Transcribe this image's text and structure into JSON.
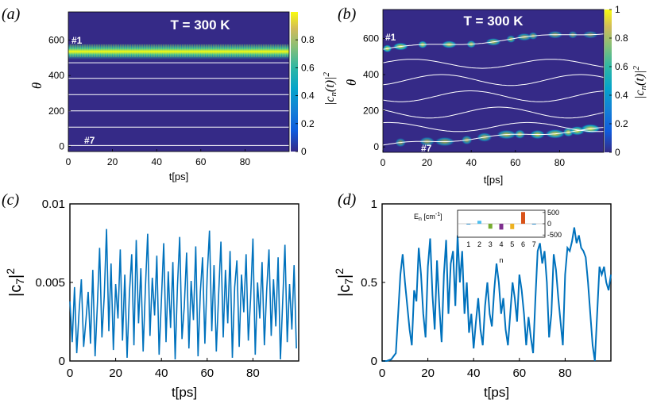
{
  "panels": {
    "a": {
      "letter": "(a)",
      "title": "T = 300 K",
      "ylabel": "θ",
      "xlabel": "t[ps]",
      "cbar_label": "|c_n(t)|^2",
      "marker_top": "#1",
      "marker_bottom": "#7",
      "xticks": [
        "0",
        "20",
        "40",
        "60",
        "80"
      ],
      "yticks": [
        "0",
        "200",
        "400",
        "600"
      ],
      "cbar_ticks": [
        "0",
        "0.2",
        "0.4",
        "0.6",
        "0.8"
      ]
    },
    "b": {
      "letter": "(b)",
      "title": "T = 300 K",
      "ylabel": "θ",
      "xlabel": "t[ps]",
      "cbar_label": "|c_n(t)|^2",
      "marker_top": "#1",
      "marker_bottom": "#7",
      "xticks": [
        "0",
        "20",
        "40",
        "60",
        "80"
      ],
      "yticks": [
        "0",
        "200",
        "400",
        "600"
      ],
      "cbar_ticks": [
        "0",
        "0.2",
        "0.4",
        "0.6",
        "0.8",
        "1"
      ]
    },
    "c": {
      "letter": "(c)",
      "ylabel": "|c_7|^2",
      "xlabel": "t[ps]",
      "xticks": [
        "0",
        "20",
        "40",
        "60",
        "80"
      ],
      "yticks": [
        "0",
        "0.005",
        "0.01"
      ]
    },
    "d": {
      "letter": "(d)",
      "ylabel": "|c_7|^2",
      "xlabel": "t[ps]",
      "xticks": [
        "0",
        "20",
        "40",
        "60",
        "80"
      ],
      "yticks": [
        "0",
        "0.5",
        "1"
      ],
      "inset": {
        "ylabel": "E_n [cm^-1]",
        "xlabel": "n",
        "xticks": [
          "1",
          "2",
          "3",
          "4",
          "5",
          "6",
          "7"
        ],
        "yticks": [
          "500",
          "0",
          "-500"
        ]
      }
    }
  },
  "colors": {
    "heat_bg": "#352a87",
    "line": "#0072bd",
    "white": "#ffffff"
  },
  "chart_data": [
    {
      "id": "a",
      "type": "heatmap",
      "title": "T = 300 K",
      "xlabel": "t[ps]",
      "ylabel": "θ",
      "xlim": [
        0,
        100
      ],
      "ylim": [
        -30,
        760
      ],
      "clim": [
        0,
        1
      ],
      "colorbar_label": "|c_n(t)|^2",
      "site_lines_theta": [
        4,
        108,
        200,
        292,
        384,
        472,
        540
      ],
      "bright_site": "#1",
      "bright_theta": 540,
      "bright_value": 0.9
    },
    {
      "id": "b",
      "type": "heatmap",
      "title": "T = 300 K",
      "xlabel": "t[ps]",
      "ylabel": "θ",
      "xlim": [
        0,
        100
      ],
      "ylim": [
        -30,
        760
      ],
      "clim": [
        0,
        1
      ],
      "colorbar_label": "|c_n(t)|^2",
      "note": "Wavy site trajectories; population transfers from site #1 (θ≈540-640) to site #7 (θ≈0-110) over time"
    },
    {
      "id": "c",
      "type": "line",
      "xlabel": "t[ps]",
      "ylabel": "|c_7|^2",
      "xlim": [
        0,
        100
      ],
      "ylim": [
        0,
        0.01
      ],
      "x": [
        0,
        1,
        2,
        3,
        4,
        5,
        6,
        7,
        8,
        9,
        10,
        11,
        12,
        13,
        14,
        15,
        16,
        17,
        18,
        19,
        20,
        21,
        22,
        23,
        24,
        25,
        26,
        27,
        28,
        29,
        30,
        31,
        32,
        33,
        34,
        35,
        36,
        37,
        38,
        39,
        40,
        41,
        42,
        43,
        44,
        45,
        46,
        47,
        48,
        49,
        50,
        51,
        52,
        53,
        54,
        55,
        56,
        57,
        58,
        59,
        60,
        61,
        62,
        63,
        64,
        65,
        66,
        67,
        68,
        69,
        70,
        71,
        72,
        73,
        74,
        75,
        76,
        77,
        78,
        79,
        80,
        81,
        82,
        83,
        84,
        85,
        86,
        87,
        88,
        89,
        90,
        91,
        92,
        93,
        94,
        95,
        96,
        97,
        98,
        99
      ],
      "y": [
        0.0038,
        0.0012,
        0.0047,
        0.0005,
        0.0031,
        0.0052,
        0.0009,
        0.0026,
        0.0044,
        0.0011,
        0.0058,
        0.0003,
        0.0036,
        0.0072,
        0.0015,
        0.0041,
        0.0084,
        0.0019,
        0.0062,
        0.0007,
        0.0049,
        0.0027,
        0.0071,
        0.0013,
        0.0055,
        0.0002,
        0.0043,
        0.0068,
        0.001,
        0.0077,
        0.0024,
        0.0059,
        0.0006,
        0.0046,
        0.0081,
        0.0016,
        0.0053,
        0.0029,
        0.0067,
        0.0004,
        0.0039,
        0.0075,
        0.0012,
        0.0057,
        0.0021,
        0.0063,
        0.0001,
        0.0048,
        0.0079,
        0.0014,
        0.0035,
        0.0069,
        0.0008,
        0.0051,
        0.0026,
        0.0073,
        0.0003,
        0.0044,
        0.0066,
        0.0011,
        0.0054,
        0.0083,
        0.0019,
        0.0061,
        0.0006,
        0.0042,
        0.0076,
        0.0015,
        0.0058,
        0.0024,
        0.007,
        0.0002,
        0.0047,
        0.0064,
        0.0009,
        0.0055,
        0.0031,
        0.0068,
        0.0013,
        0.004,
        0.0078,
        0.0004,
        0.005,
        0.0027,
        0.0063,
        0.001,
        0.0045,
        0.0071,
        0.0016,
        0.0052,
        0.0022,
        0.0066,
        0.0001,
        0.0037,
        0.0074,
        0.0012,
        0.0049,
        0.002,
        0.0061,
        0.0008
      ]
    },
    {
      "id": "d",
      "type": "line",
      "xlabel": "t[ps]",
      "ylabel": "|c_7|^2",
      "xlim": [
        0,
        100
      ],
      "ylim": [
        0,
        1
      ],
      "x": [
        0,
        2,
        4,
        6,
        7,
        8,
        9,
        10,
        11,
        12,
        13,
        14,
        15,
        16,
        17,
        18,
        19,
        20,
        21,
        22,
        23,
        24,
        25,
        26,
        27,
        28,
        29,
        30,
        31,
        32,
        33,
        34,
        35,
        36,
        37,
        38,
        39,
        40,
        41,
        42,
        43,
        44,
        45,
        46,
        47,
        48,
        49,
        50,
        51,
        52,
        53,
        54,
        55,
        56,
        57,
        58,
        59,
        60,
        61,
        62,
        63,
        64,
        65,
        66,
        67,
        68,
        69,
        70,
        71,
        72,
        73,
        74,
        75,
        76,
        77,
        78,
        79,
        80,
        81,
        82,
        83,
        84,
        85,
        86,
        87,
        88,
        89,
        90,
        91,
        92,
        93,
        94,
        95,
        96,
        97,
        98,
        99,
        100
      ],
      "y": [
        0.0,
        0.0,
        0.01,
        0.05,
        0.3,
        0.55,
        0.68,
        0.5,
        0.35,
        0.2,
        0.1,
        0.45,
        0.38,
        0.72,
        0.55,
        0.3,
        0.15,
        0.6,
        0.78,
        0.42,
        0.2,
        0.64,
        0.35,
        0.12,
        0.55,
        0.77,
        0.3,
        0.62,
        0.7,
        0.35,
        0.8,
        0.5,
        0.7,
        0.3,
        0.5,
        0.18,
        0.3,
        0.08,
        0.25,
        0.4,
        0.2,
        0.1,
        0.35,
        0.5,
        0.3,
        0.22,
        0.45,
        0.62,
        0.5,
        0.3,
        0.4,
        0.2,
        0.1,
        0.3,
        0.5,
        0.4,
        0.25,
        0.55,
        0.45,
        0.3,
        0.1,
        0.28,
        0.15,
        0.05,
        0.4,
        0.7,
        0.75,
        0.62,
        0.7,
        0.5,
        0.15,
        0.3,
        0.68,
        0.58,
        0.4,
        0.25,
        0.1,
        0.55,
        0.72,
        0.7,
        0.76,
        0.85,
        0.75,
        0.8,
        0.72,
        0.7,
        0.66,
        0.5,
        0.3,
        0.1,
        0.0,
        0.3,
        0.6,
        0.55,
        0.6,
        0.5,
        0.45,
        0.55
      ]
    },
    {
      "id": "d-inset",
      "type": "bar",
      "xlabel": "n",
      "ylabel": "E_n [cm^-1]",
      "categories": [
        "1",
        "2",
        "3",
        "4",
        "5",
        "6",
        "7"
      ],
      "values": [
        0,
        130,
        -220,
        -260,
        -240,
        520,
        0
      ],
      "ylim": [
        -600,
        600
      ],
      "bar_colors": [
        "#0072bd",
        "#4dbeee",
        "#77ac30",
        "#7e2f8e",
        "#edb120",
        "#d95319",
        "#0072bd"
      ]
    }
  ]
}
